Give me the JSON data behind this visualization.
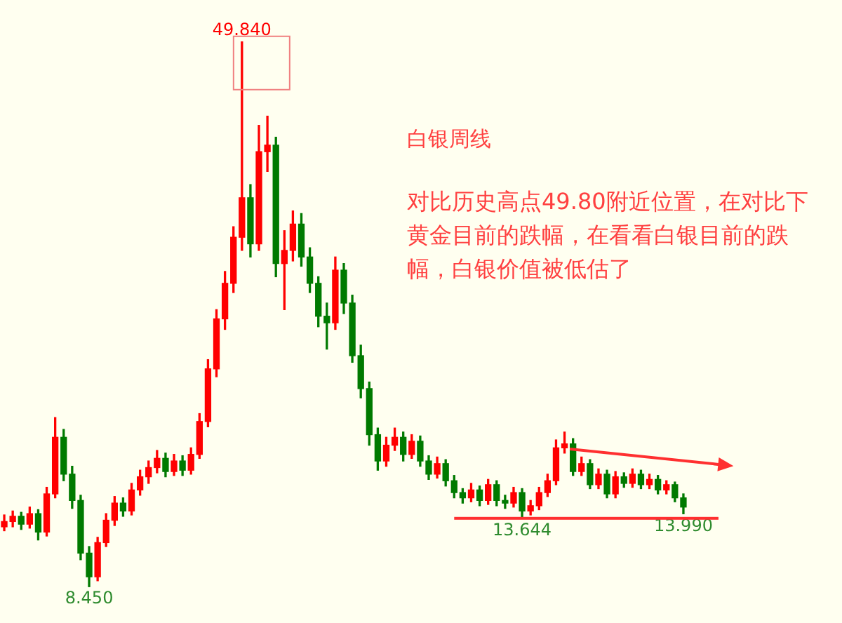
{
  "chart_data": {
    "type": "candlestick",
    "categories": [
      null,
      null,
      null,
      null,
      null,
      null,
      null,
      null,
      null,
      null,
      null,
      null,
      null,
      null,
      null,
      null,
      null,
      null,
      null,
      null,
      null,
      null,
      null,
      null,
      null,
      null,
      null,
      null,
      null,
      null,
      null,
      null,
      null,
      null,
      null,
      null,
      null,
      null,
      null,
      null,
      null,
      null,
      null,
      null,
      null,
      null,
      null,
      null,
      null,
      null,
      null,
      null,
      null,
      null,
      null,
      null,
      null,
      null,
      null,
      null,
      null,
      null,
      null,
      null,
      null,
      null,
      null,
      null,
      null,
      null,
      null,
      null,
      null,
      null,
      null,
      null,
      null,
      null,
      null,
      null,
      null
    ],
    "ohlc": [
      [
        13.0,
        13.9,
        12.7,
        13.4
      ],
      [
        13.4,
        14.2,
        13.0,
        13.8
      ],
      [
        13.8,
        14.1,
        12.8,
        13.2
      ],
      [
        13.2,
        14.5,
        12.9,
        14.0
      ],
      [
        14.0,
        14.3,
        12.0,
        12.6
      ],
      [
        12.6,
        16.0,
        12.3,
        15.5
      ],
      [
        15.5,
        21.3,
        15.2,
        19.8
      ],
      [
        19.8,
        20.4,
        16.5,
        17.0
      ],
      [
        17.0,
        17.6,
        14.4,
        15.0
      ],
      [
        15.0,
        15.4,
        10.5,
        11.0
      ],
      [
        11.0,
        11.5,
        8.45,
        9.2
      ],
      [
        9.2,
        12.2,
        8.9,
        11.8
      ],
      [
        11.8,
        14.0,
        11.5,
        13.5
      ],
      [
        13.5,
        15.3,
        13.1,
        14.8
      ],
      [
        14.8,
        15.2,
        13.8,
        14.2
      ],
      [
        14.2,
        16.3,
        13.9,
        15.8
      ],
      [
        15.8,
        17.3,
        15.4,
        16.8
      ],
      [
        16.8,
        18.0,
        16.3,
        17.5
      ],
      [
        17.5,
        18.8,
        17.1,
        18.2
      ],
      [
        18.2,
        18.6,
        16.8,
        17.2
      ],
      [
        17.2,
        18.5,
        16.9,
        18.0
      ],
      [
        18.0,
        18.4,
        16.9,
        17.3
      ],
      [
        17.3,
        19.0,
        17.0,
        18.5
      ],
      [
        18.5,
        21.6,
        18.2,
        21.0
      ],
      [
        21.0,
        25.7,
        20.6,
        25.0
      ],
      [
        25.0,
        29.5,
        24.4,
        28.8
      ],
      [
        28.8,
        32.4,
        28.0,
        31.5
      ],
      [
        31.5,
        35.8,
        30.8,
        35.0
      ],
      [
        35.0,
        49.84,
        34.0,
        38.0
      ],
      [
        38.0,
        39.0,
        33.5,
        34.5
      ],
      [
        34.5,
        43.5,
        34.0,
        41.5
      ],
      [
        41.5,
        44.2,
        40.0,
        42.0
      ],
      [
        42.0,
        42.6,
        32.0,
        33.0
      ],
      [
        33.0,
        35.5,
        29.5,
        34.0
      ],
      [
        34.0,
        37.0,
        33.2,
        36.0
      ],
      [
        36.0,
        36.8,
        32.8,
        33.5
      ],
      [
        33.5,
        34.2,
        30.8,
        31.5
      ],
      [
        31.5,
        32.0,
        28.2,
        29.0
      ],
      [
        29.0,
        30.0,
        26.5,
        28.5
      ],
      [
        28.5,
        33.5,
        28.0,
        32.5
      ],
      [
        32.5,
        33.0,
        29.2,
        30.0
      ],
      [
        30.0,
        30.6,
        25.5,
        26.0
      ],
      [
        26.0,
        26.8,
        22.8,
        23.5
      ],
      [
        23.5,
        24.0,
        19.2,
        20.0
      ],
      [
        20.0,
        20.5,
        17.3,
        18.0
      ],
      [
        18.0,
        19.8,
        17.6,
        19.2
      ],
      [
        19.2,
        20.5,
        18.8,
        19.8
      ],
      [
        19.8,
        20.2,
        18.0,
        18.5
      ],
      [
        18.5,
        20.0,
        18.2,
        19.5
      ],
      [
        19.5,
        19.9,
        17.6,
        18.0
      ],
      [
        18.0,
        18.4,
        16.6,
        17.0
      ],
      [
        17.0,
        18.3,
        16.7,
        17.8
      ],
      [
        17.8,
        18.1,
        16.1,
        16.5
      ],
      [
        16.5,
        16.9,
        15.2,
        15.6
      ],
      [
        15.6,
        15.9,
        14.8,
        15.2
      ],
      [
        15.2,
        16.3,
        14.9,
        15.8
      ],
      [
        15.8,
        16.1,
        14.6,
        15.0
      ],
      [
        15.0,
        16.6,
        14.7,
        16.2
      ],
      [
        16.2,
        16.5,
        14.6,
        15.0
      ],
      [
        15.0,
        15.4,
        14.4,
        14.8
      ],
      [
        14.8,
        16.0,
        14.5,
        15.6
      ],
      [
        15.6,
        15.9,
        13.644,
        14.2
      ],
      [
        14.2,
        15.0,
        13.9,
        14.6
      ],
      [
        14.6,
        16.0,
        14.3,
        15.6
      ],
      [
        15.6,
        17.0,
        15.3,
        16.5
      ],
      [
        16.5,
        19.6,
        16.2,
        19.0
      ],
      [
        19.0,
        20.2,
        18.6,
        19.3
      ],
      [
        19.3,
        19.7,
        16.9,
        17.2
      ],
      [
        17.2,
        18.3,
        16.9,
        17.8
      ],
      [
        17.8,
        18.1,
        15.9,
        16.2
      ],
      [
        16.2,
        17.4,
        15.9,
        17.0
      ],
      [
        17.0,
        17.3,
        15.2,
        15.5
      ],
      [
        15.5,
        17.2,
        15.2,
        16.8
      ],
      [
        16.8,
        17.1,
        16.0,
        16.3
      ],
      [
        16.3,
        17.4,
        16.0,
        17.0
      ],
      [
        17.0,
        17.3,
        15.9,
        16.2
      ],
      [
        16.2,
        17.0,
        15.9,
        16.6
      ],
      [
        16.6,
        16.9,
        15.5,
        15.8
      ],
      [
        15.8,
        16.5,
        15.5,
        16.2
      ],
      [
        16.2,
        16.4,
        14.9,
        15.2
      ],
      [
        15.2,
        15.5,
        13.99,
        14.5
      ]
    ],
    "annotations": [
      {
        "text": "49.840",
        "y": 49.84
      },
      {
        "text": "8.450",
        "y": 8.45
      },
      {
        "text": "13.644",
        "y": 13.644
      },
      {
        "text": "13.990",
        "y": 13.99
      },
      "白银周线",
      "对比历史高点49.80附近位置，在对比下黄金目前的跌幅，在看看白银目前的跌幅，白银价值被低估了"
    ]
  }
}
